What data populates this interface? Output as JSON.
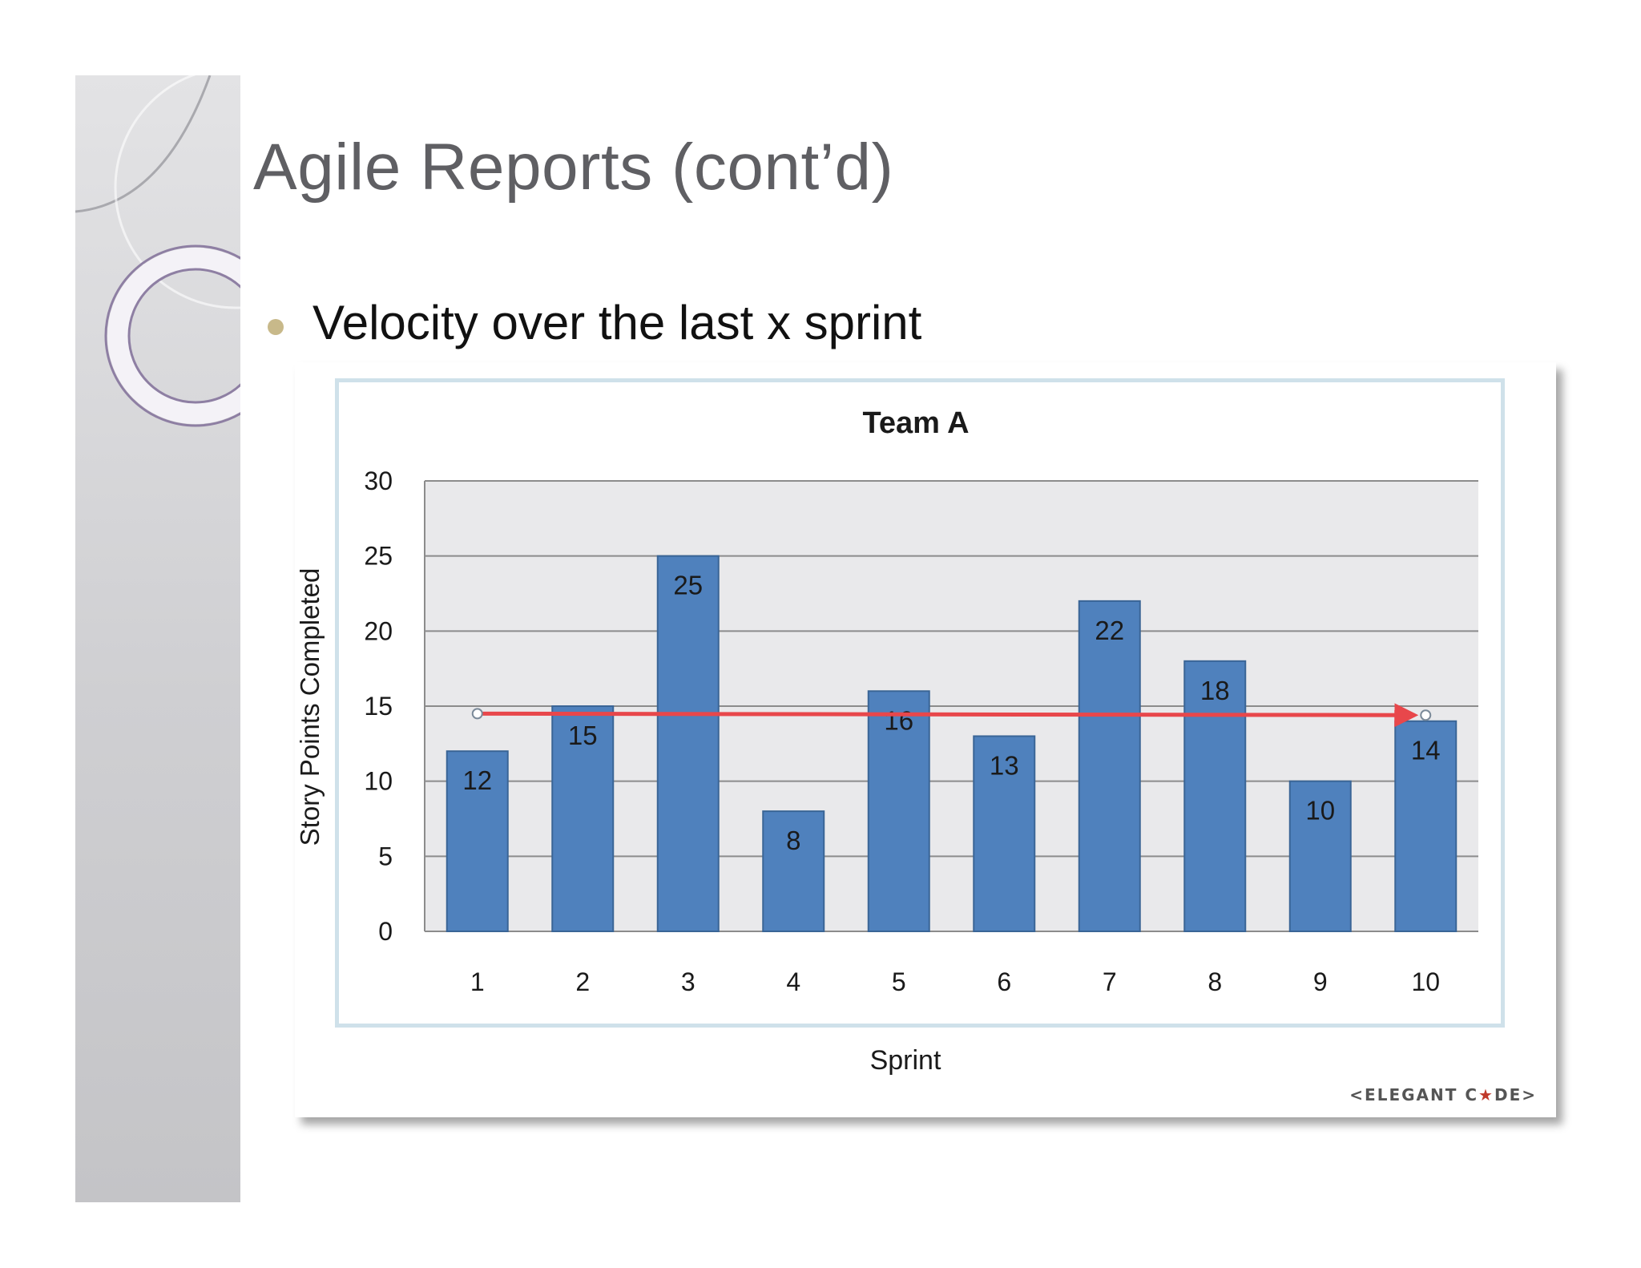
{
  "slide": {
    "title": "Agile Reports (cont’d)",
    "bullet": "Velocity over the last x sprint"
  },
  "watermark": {
    "left": "<ELEGANT C",
    "star": "★",
    "right": "DE>"
  },
  "colors": {
    "bar": "#4f81bd",
    "bar_edge": "#3a6596",
    "trend": "#e8474b",
    "plot_bg": "#e9e9eb",
    "grid": "#8c8c8c"
  },
  "chart_data": {
    "type": "bar",
    "title": "Team A",
    "xlabel": "Sprint",
    "ylabel": "Story Points Completed",
    "categories": [
      "1",
      "2",
      "3",
      "4",
      "5",
      "6",
      "7",
      "8",
      "9",
      "10"
    ],
    "values": [
      12,
      15,
      25,
      8,
      16,
      13,
      22,
      18,
      10,
      14
    ],
    "y_ticks": [
      "0",
      "5",
      "10",
      "15",
      "20",
      "25",
      "30"
    ],
    "ylim": [
      0,
      30
    ],
    "grid": true,
    "legend": "none",
    "data_labels": true,
    "trend_line": {
      "from_sprint": 1,
      "to_sprint": 10,
      "from_value": 14.5,
      "to_value": 14.4
    }
  }
}
